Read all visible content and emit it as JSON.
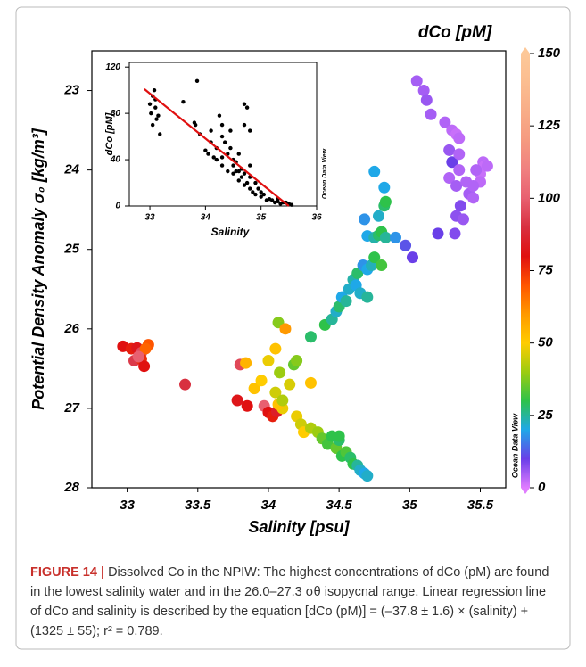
{
  "chart_data": [
    {
      "type": "scatter",
      "xlabel": "Salinity [psu]",
      "ylabel": "Potential Density Anomaly σ₀ [kg/m³]",
      "xlim": [
        32.75,
        35.68
      ],
      "ylim": [
        28,
        22.5
      ],
      "xticks": [
        33,
        33.5,
        34,
        34.5,
        35,
        35.5
      ],
      "yticks": [
        23,
        24,
        25,
        26,
        27,
        28
      ],
      "watermark": "Ocean Data View",
      "colorbar": {
        "label": "dCo [pM]",
        "lim": [
          0,
          150
        ],
        "ticks": [
          0,
          25,
          50,
          75,
          100,
          125,
          150
        ],
        "colormap": [
          "#e07cff",
          "#6a3fe8",
          "#1fa8e8",
          "#2ec24a",
          "#9ccc10",
          "#ffcc00",
          "#ff9900",
          "#ff5500",
          "#e01010",
          "#d83040",
          "#e86070",
          "#f08080",
          "#f59a80",
          "#f8ad88",
          "#fbbd90",
          "#fdc898"
        ]
      },
      "x": [
        32.97,
        33.03,
        33.07,
        33.1,
        33.05,
        33.1,
        33.12,
        33.15,
        33.13,
        33.08,
        33.41,
        33.78,
        33.85,
        33.8,
        33.84,
        33.9,
        33.95,
        34.0,
        34.05,
        33.97,
        34.0,
        34.03,
        34.06,
        34.1,
        34.05,
        34.07,
        34.08,
        34.1,
        34.07,
        34.12,
        34.15,
        34.18,
        34.2,
        34.3,
        34.3,
        34.2,
        34.23,
        34.25,
        34.3,
        34.35,
        34.38,
        34.42,
        34.45,
        34.48,
        34.5,
        34.52,
        34.55,
        34.58,
        34.6,
        34.63,
        34.65,
        34.68,
        34.7,
        34.5,
        34.4,
        34.45,
        34.48,
        34.5,
        34.52,
        34.55,
        34.57,
        34.6,
        34.62,
        34.63,
        34.65,
        34.67,
        34.7,
        34.73,
        34.75,
        34.8,
        34.7,
        34.7,
        34.75,
        34.78,
        34.8,
        34.83,
        34.82,
        34.83,
        34.68,
        34.78,
        34.82,
        34.75,
        34.9,
        34.97,
        35.02,
        35.05,
        35.1,
        35.12,
        35.15,
        35.25,
        35.3,
        35.33,
        35.35,
        35.28,
        35.3,
        35.35,
        35.35,
        35.28,
        35.33,
        35.4,
        35.42,
        35.36,
        35.33,
        35.38,
        35.32,
        35.2,
        35.5,
        35.5,
        35.52,
        35.53,
        35.55,
        35.47,
        35.45,
        35.45
      ],
      "y": [
        26.22,
        26.25,
        26.24,
        26.3,
        26.4,
        26.38,
        26.47,
        26.2,
        26.25,
        26.35,
        26.7,
        26.9,
        26.97,
        26.45,
        26.43,
        26.75,
        26.65,
        26.4,
        26.25,
        26.97,
        27.05,
        27.1,
        27.04,
        27.0,
        26.8,
        26.95,
        26.55,
        26.9,
        25.92,
        26.0,
        26.7,
        26.45,
        26.4,
        26.68,
        26.1,
        27.1,
        27.2,
        27.3,
        27.25,
        27.3,
        27.38,
        27.45,
        27.35,
        27.5,
        27.4,
        27.6,
        27.55,
        27.62,
        27.7,
        27.72,
        27.78,
        27.82,
        27.85,
        27.35,
        25.95,
        25.88,
        25.78,
        25.72,
        25.6,
        25.65,
        25.5,
        25.38,
        25.45,
        25.3,
        25.55,
        25.2,
        25.25,
        25.2,
        25.1,
        25.2,
        25.6,
        24.83,
        24.85,
        24.82,
        24.78,
        24.85,
        24.45,
        24.4,
        24.62,
        24.58,
        24.22,
        24.02,
        24.85,
        24.95,
        25.1,
        22.88,
        23.0,
        23.12,
        23.3,
        23.4,
        23.5,
        23.55,
        23.6,
        23.75,
        23.9,
        23.8,
        24.0,
        24.1,
        24.2,
        24.15,
        24.3,
        24.45,
        24.58,
        24.62,
        24.8,
        24.8,
        24.05,
        24.15,
        23.9,
        23.95,
        23.95,
        24.0,
        24.2,
        24.35
      ],
      "c": [
        80,
        78,
        82,
        95,
        92,
        76,
        80,
        70,
        68,
        100,
        90,
        82,
        80,
        95,
        55,
        52,
        50,
        48,
        52,
        100,
        80,
        78,
        85,
        48,
        45,
        52,
        40,
        42,
        38,
        60,
        46,
        35,
        38,
        52,
        28,
        48,
        45,
        50,
        42,
        40,
        35,
        32,
        30,
        35,
        28,
        30,
        33,
        28,
        30,
        25,
        22,
        20,
        22,
        30,
        30,
        25,
        22,
        28,
        20,
        25,
        22,
        24,
        20,
        28,
        22,
        18,
        20,
        23,
        30,
        32,
        25,
        20,
        24,
        28,
        30,
        25,
        28,
        30,
        18,
        22,
        20,
        20,
        18,
        12,
        10,
        5,
        5,
        6,
        5,
        4,
        3,
        2,
        3,
        6,
        10,
        4,
        4,
        4,
        5,
        4,
        5,
        8,
        7,
        6,
        8,
        10,
        2,
        3,
        3,
        2,
        3,
        4,
        4,
        4
      ]
    },
    {
      "type": "scatter",
      "xlabel": "Salinity",
      "ylabel": "dCo [pM]",
      "xlim": [
        32.63,
        36
      ],
      "ylim": [
        0,
        124
      ],
      "xticks": [
        33,
        34,
        35,
        36
      ],
      "yticks": [
        0,
        40,
        80,
        120
      ],
      "color": "#000000",
      "watermark": "Ocean Data View",
      "fit": {
        "x": [
          32.9,
          35.5
        ],
        "y": [
          101,
          0
        ],
        "color": "#e01010"
      },
      "x": [
        33.0,
        33.02,
        33.05,
        33.08,
        33.1,
        33.12,
        33.15,
        33.18,
        33.1,
        33.05,
        33.6,
        33.85,
        33.8,
        33.82,
        33.9,
        34.0,
        34.05,
        34.1,
        34.1,
        34.15,
        34.2,
        34.25,
        34.3,
        34.2,
        34.3,
        34.4,
        34.45,
        34.5,
        34.55,
        34.6,
        34.7,
        34.75,
        34.7,
        34.8,
        34.35,
        34.4,
        34.5,
        34.6,
        34.65,
        34.7,
        34.75,
        34.8,
        34.85,
        34.9,
        34.5,
        34.65,
        34.3,
        34.55,
        34.7,
        34.8,
        35.0,
        35.1,
        35.2,
        35.3,
        35.4,
        35.5,
        35.55,
        35.35,
        35.25,
        35.15,
        35.05,
        34.95,
        35.45,
        35.3,
        35.0,
        34.9,
        34.8,
        34.6,
        34.45,
        34.3
      ],
      "y": [
        88,
        80,
        95,
        100,
        85,
        75,
        78,
        62,
        92,
        70,
        90,
        108,
        72,
        70,
        62,
        48,
        45,
        55,
        65,
        42,
        50,
        78,
        60,
        40,
        35,
        45,
        50,
        40,
        38,
        30,
        88,
        85,
        70,
        65,
        55,
        30,
        28,
        22,
        25,
        18,
        20,
        15,
        12,
        10,
        35,
        32,
        42,
        30,
        28,
        25,
        8,
        5,
        5,
        4,
        3,
        2,
        1,
        2,
        3,
        6,
        10,
        15,
        3,
        6,
        12,
        20,
        35,
        45,
        65,
        70
      ]
    }
  ],
  "caption": {
    "label": "FIGURE 14 |",
    "text": "Dissolved Co in the NPIW: The highest concentrations of dCo (pM) are found in the lowest salinity water and in the 26.0–27.3 σθ isopycnal range. Linear regression line of dCo and salinity is described by the equation [dCo (pM)] = (–37.8 ± 1.6) × (salinity) + (1325 ± 55); r² = 0.789."
  }
}
